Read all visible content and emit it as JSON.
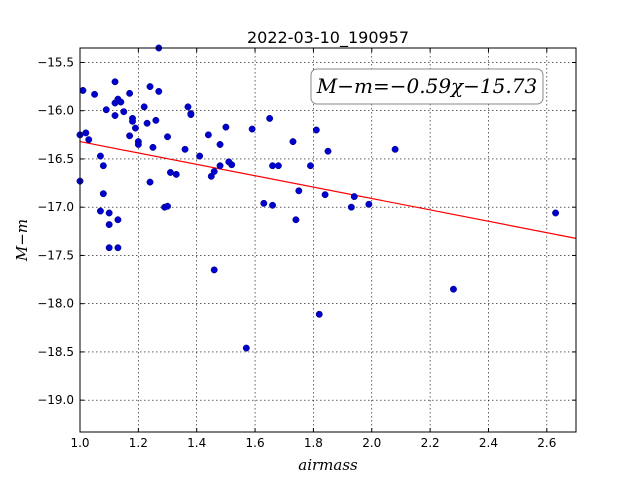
{
  "chart_data": {
    "type": "scatter",
    "title": "2022-03-10_190957",
    "xlabel": "airmass",
    "ylabel": "M−m",
    "xlim": [
      1.0,
      2.7
    ],
    "ylim": [
      -15.35,
      -19.33
    ],
    "xticks": [
      1.0,
      1.2,
      1.4,
      1.6,
      1.8,
      2.0,
      2.2,
      2.4,
      2.6
    ],
    "xtick_labels": [
      "1.0",
      "1.2",
      "1.4",
      "1.6",
      "1.8",
      "2.0",
      "2.2",
      "2.4",
      "2.6"
    ],
    "yticks": [
      -15.5,
      -16.0,
      -16.5,
      -17.0,
      -17.5,
      -18.0,
      -18.5,
      -19.0
    ],
    "ytick_labels": [
      "−15.5",
      "−16.0",
      "−16.5",
      "−17.0",
      "−17.5",
      "−18.0",
      "−18.5",
      "−19.0"
    ],
    "grid": true,
    "annotation": "M−m=−0.59χ−15.73",
    "fit": {
      "slope": -0.59,
      "intercept": -15.73,
      "color": "#ff0000"
    },
    "point_color": "#0000cc",
    "points": [
      [
        1.0,
        -16.25
      ],
      [
        1.0,
        -16.73
      ],
      [
        1.01,
        -15.79
      ],
      [
        1.02,
        -16.23
      ],
      [
        1.03,
        -16.3
      ],
      [
        1.05,
        -15.83
      ],
      [
        1.07,
        -16.47
      ],
      [
        1.07,
        -17.04
      ],
      [
        1.08,
        -16.57
      ],
      [
        1.08,
        -16.86
      ],
      [
        1.09,
        -15.99
      ],
      [
        1.1,
        -17.06
      ],
      [
        1.1,
        -17.18
      ],
      [
        1.1,
        -17.42
      ],
      [
        1.12,
        -15.7
      ],
      [
        1.12,
        -15.92
      ],
      [
        1.12,
        -16.05
      ],
      [
        1.13,
        -17.13
      ],
      [
        1.13,
        -17.42
      ],
      [
        1.13,
        -15.88
      ],
      [
        1.14,
        -15.91
      ],
      [
        1.15,
        -16.01
      ],
      [
        1.17,
        -16.26
      ],
      [
        1.17,
        -15.82
      ],
      [
        1.18,
        -16.08
      ],
      [
        1.18,
        -16.11
      ],
      [
        1.19,
        -16.18
      ],
      [
        1.2,
        -16.32
      ],
      [
        1.2,
        -16.35
      ],
      [
        1.22,
        -15.96
      ],
      [
        1.23,
        -16.13
      ],
      [
        1.24,
        -15.75
      ],
      [
        1.24,
        -16.74
      ],
      [
        1.25,
        -16.38
      ],
      [
        1.26,
        -16.1
      ],
      [
        1.27,
        -15.8
      ],
      [
        1.27,
        -15.35
      ],
      [
        1.29,
        -17.0
      ],
      [
        1.3,
        -16.99
      ],
      [
        1.3,
        -16.27
      ],
      [
        1.31,
        -16.64
      ],
      [
        1.33,
        -16.66
      ],
      [
        1.36,
        -16.4
      ],
      [
        1.37,
        -15.96
      ],
      [
        1.38,
        -16.03
      ],
      [
        1.38,
        -16.04
      ],
      [
        1.41,
        -16.47
      ],
      [
        1.44,
        -16.25
      ],
      [
        1.45,
        -16.68
      ],
      [
        1.46,
        -16.63
      ],
      [
        1.46,
        -17.65
      ],
      [
        1.48,
        -16.57
      ],
      [
        1.48,
        -16.35
      ],
      [
        1.5,
        -16.17
      ],
      [
        1.51,
        -16.53
      ],
      [
        1.52,
        -16.56
      ],
      [
        1.57,
        -18.46
      ],
      [
        1.59,
        -16.19
      ],
      [
        1.63,
        -16.96
      ],
      [
        1.65,
        -16.08
      ],
      [
        1.66,
        -16.57
      ],
      [
        1.66,
        -16.98
      ],
      [
        1.68,
        -16.57
      ],
      [
        1.73,
        -16.32
      ],
      [
        1.74,
        -17.13
      ],
      [
        1.75,
        -16.83
      ],
      [
        1.79,
        -16.57
      ],
      [
        1.81,
        -16.2
      ],
      [
        1.82,
        -18.11
      ],
      [
        1.84,
        -16.87
      ],
      [
        1.85,
        -16.42
      ],
      [
        1.93,
        -17.0
      ],
      [
        1.94,
        -16.89
      ],
      [
        1.99,
        -16.97
      ],
      [
        2.08,
        -16.4
      ],
      [
        2.28,
        -17.85
      ],
      [
        2.63,
        -17.06
      ]
    ]
  }
}
